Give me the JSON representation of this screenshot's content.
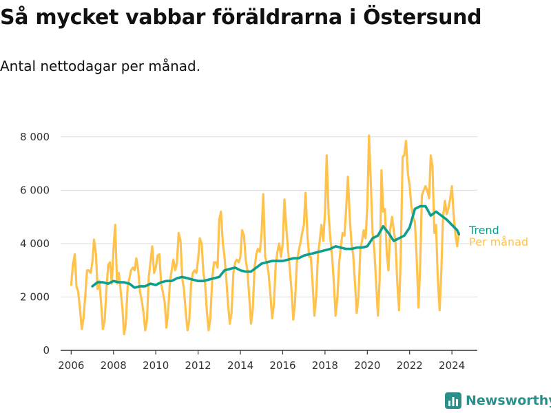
{
  "header": {
    "title": "Så mycket vabbar föräldrarna i Östersund",
    "subtitle": "Antal nettodagar per månad."
  },
  "brand": {
    "name": "Newsworthy",
    "icon": "bar-chart-logo-icon"
  },
  "colors": {
    "monthly": "#FFC34D",
    "trend": "#0E9E8E",
    "grid": "#DDDDDD",
    "axis": "#333333"
  },
  "chart_data": {
    "type": "line",
    "title": "Så mycket vabbar föräldrarna i Östersund",
    "subtitle": "Antal nettodagar per månad.",
    "xlabel": "",
    "ylabel": "",
    "xlim": [
      2005.5,
      2025.2
    ],
    "ylim": [
      0,
      9000
    ],
    "xticks": [
      2006,
      2008,
      2010,
      2012,
      2014,
      2016,
      2018,
      2020,
      2022,
      2024
    ],
    "xtick_labels": [
      "2006",
      "2008",
      "2010",
      "2012",
      "2014",
      "2016",
      "2018",
      "2020",
      "2022",
      "2024"
    ],
    "yticks": [
      0,
      2000,
      4000,
      6000,
      8000
    ],
    "ytick_labels": [
      "0",
      "2 000",
      "4 000",
      "6 000",
      "8 000"
    ],
    "grid": true,
    "legend_position": "right-end",
    "series": [
      {
        "name": "Per månad",
        "x": [
          2006.0,
          2006.08,
          2006.17,
          2006.25,
          2006.33,
          2006.42,
          2006.5,
          2006.58,
          2006.67,
          2006.75,
          2006.83,
          2006.92,
          2007.0,
          2007.08,
          2007.17,
          2007.25,
          2007.33,
          2007.42,
          2007.5,
          2007.58,
          2007.67,
          2007.75,
          2007.83,
          2007.92,
          2008.0,
          2008.08,
          2008.17,
          2008.25,
          2008.33,
          2008.42,
          2008.5,
          2008.58,
          2008.67,
          2008.75,
          2008.83,
          2008.92,
          2009.0,
          2009.08,
          2009.17,
          2009.25,
          2009.33,
          2009.42,
          2009.5,
          2009.58,
          2009.67,
          2009.75,
          2009.83,
          2009.92,
          2010.0,
          2010.08,
          2010.17,
          2010.25,
          2010.33,
          2010.42,
          2010.5,
          2010.58,
          2010.67,
          2010.75,
          2010.83,
          2010.92,
          2011.0,
          2011.08,
          2011.17,
          2011.25,
          2011.33,
          2011.42,
          2011.5,
          2011.58,
          2011.67,
          2011.75,
          2011.83,
          2011.92,
          2012.0,
          2012.08,
          2012.17,
          2012.25,
          2012.33,
          2012.42,
          2012.5,
          2012.58,
          2012.67,
          2012.75,
          2012.83,
          2012.92,
          2013.0,
          2013.08,
          2013.17,
          2013.25,
          2013.33,
          2013.42,
          2013.5,
          2013.58,
          2013.67,
          2013.75,
          2013.83,
          2013.92,
          2014.0,
          2014.08,
          2014.17,
          2014.25,
          2014.33,
          2014.42,
          2014.5,
          2014.58,
          2014.67,
          2014.75,
          2014.83,
          2014.92,
          2015.0,
          2015.08,
          2015.17,
          2015.25,
          2015.33,
          2015.42,
          2015.5,
          2015.58,
          2015.67,
          2015.75,
          2015.83,
          2015.92,
          2016.0,
          2016.08,
          2016.17,
          2016.25,
          2016.33,
          2016.42,
          2016.5,
          2016.58,
          2016.67,
          2016.75,
          2016.83,
          2016.92,
          2017.0,
          2017.08,
          2017.17,
          2017.25,
          2017.33,
          2017.42,
          2017.5,
          2017.58,
          2017.67,
          2017.75,
          2017.83,
          2017.92,
          2018.0,
          2018.08,
          2018.17,
          2018.25,
          2018.33,
          2018.42,
          2018.5,
          2018.58,
          2018.67,
          2018.75,
          2018.83,
          2018.92,
          2019.0,
          2019.08,
          2019.17,
          2019.25,
          2019.33,
          2019.42,
          2019.5,
          2019.58,
          2019.67,
          2019.75,
          2019.83,
          2019.92,
          2020.0,
          2020.08,
          2020.17,
          2020.25,
          2020.33,
          2020.42,
          2020.5,
          2020.58,
          2020.67,
          2020.75,
          2020.83,
          2020.92,
          2021.0,
          2021.08,
          2021.17,
          2021.25,
          2021.33,
          2021.42,
          2021.5,
          2021.58,
          2021.67,
          2021.75,
          2021.83,
          2021.92,
          2022.0,
          2022.08,
          2022.17,
          2022.25,
          2022.33,
          2022.42,
          2022.5,
          2022.58,
          2022.67,
          2022.75,
          2022.83,
          2022.92,
          2023.0,
          2023.08,
          2023.17,
          2023.25,
          2023.33,
          2023.42,
          2023.5,
          2023.58,
          2023.67,
          2023.75,
          2023.83,
          2023.92,
          2024.0,
          2024.08,
          2024.17,
          2024.25,
          2024.33
        ],
        "values": [
          2450,
          3200,
          3600,
          2400,
          2200,
          1500,
          800,
          1200,
          2100,
          3000,
          3000,
          2900,
          3300,
          4150,
          3600,
          2300,
          2600,
          1700,
          800,
          1100,
          2300,
          3200,
          3300,
          2500,
          3800,
          4700,
          2500,
          2900,
          2300,
          1600,
          600,
          1000,
          2400,
          2700,
          3000,
          3100,
          3000,
          3450,
          3000,
          2200,
          1900,
          1400,
          750,
          1100,
          2800,
          3300,
          3900,
          2900,
          3100,
          3550,
          3600,
          2500,
          2200,
          1800,
          850,
          1400,
          2600,
          3000,
          3400,
          3000,
          3300,
          4400,
          4100,
          2700,
          2300,
          1400,
          750,
          1100,
          2500,
          2900,
          3000,
          2900,
          3400,
          4200,
          4000,
          2900,
          2500,
          1400,
          750,
          1200,
          2700,
          3300,
          3300,
          3100,
          4900,
          5200,
          4000,
          3500,
          2700,
          1700,
          1000,
          1400,
          2900,
          3300,
          3400,
          3300,
          3500,
          4500,
          4300,
          3400,
          3000,
          2000,
          1000,
          1500,
          3100,
          3600,
          3800,
          3700,
          4400,
          5850,
          3500,
          3300,
          2900,
          2100,
          1200,
          1700,
          3200,
          3700,
          4000,
          3500,
          4000,
          5650,
          4600,
          3800,
          3100,
          2200,
          1150,
          1800,
          3300,
          3700,
          4000,
          4400,
          4700,
          5900,
          4300,
          3500,
          3500,
          2400,
          1300,
          2000,
          3600,
          4100,
          4700,
          4100,
          5200,
          7300,
          5100,
          4200,
          3600,
          2500,
          1300,
          1900,
          3300,
          3900,
          4400,
          4300,
          5300,
          6500,
          5000,
          4000,
          3600,
          2500,
          1400,
          2000,
          3800,
          4100,
          4500,
          4200,
          5400,
          8050,
          6200,
          4400,
          3800,
          2500,
          1300,
          2600,
          6750,
          5200,
          5300,
          3600,
          3000,
          4500,
          5000,
          4500,
          4100,
          2500,
          1500,
          3500,
          7250,
          7300,
          7850,
          6600,
          6200,
          5400,
          5000,
          4800,
          3500,
          1600,
          3200,
          5800,
          6000,
          6150,
          6000,
          5700,
          7300,
          6900,
          4400,
          4700,
          2700,
          1500,
          3000,
          5000,
          5600,
          5100,
          5300,
          5700,
          6150,
          5100,
          4300,
          3900,
          4400
        ]
      },
      {
        "name": "Trend",
        "x": [
          2007.0,
          2007.25,
          2007.5,
          2007.75,
          2008.0,
          2008.25,
          2008.5,
          2008.75,
          2009.0,
          2009.25,
          2009.5,
          2009.75,
          2010.0,
          2010.25,
          2010.5,
          2010.75,
          2011.0,
          2011.25,
          2011.5,
          2011.75,
          2012.0,
          2012.25,
          2012.5,
          2012.75,
          2013.0,
          2013.25,
          2013.5,
          2013.75,
          2014.0,
          2014.25,
          2014.5,
          2014.75,
          2015.0,
          2015.25,
          2015.5,
          2015.75,
          2016.0,
          2016.25,
          2016.5,
          2016.75,
          2017.0,
          2017.25,
          2017.5,
          2017.75,
          2018.0,
          2018.25,
          2018.5,
          2018.75,
          2019.0,
          2019.25,
          2019.5,
          2019.75,
          2020.0,
          2020.25,
          2020.5,
          2020.75,
          2021.0,
          2021.25,
          2021.5,
          2021.75,
          2022.0,
          2022.25,
          2022.5,
          2022.75,
          2023.0,
          2023.25,
          2023.5,
          2023.75,
          2024.0,
          2024.25,
          2024.33
        ],
        "values": [
          2400,
          2550,
          2550,
          2500,
          2600,
          2550,
          2550,
          2500,
          2350,
          2400,
          2400,
          2500,
          2450,
          2550,
          2600,
          2600,
          2700,
          2750,
          2700,
          2650,
          2600,
          2600,
          2650,
          2700,
          2750,
          3000,
          3050,
          3100,
          3000,
          2950,
          2950,
          3100,
          3250,
          3300,
          3350,
          3350,
          3350,
          3400,
          3450,
          3450,
          3550,
          3600,
          3650,
          3700,
          3750,
          3800,
          3900,
          3850,
          3800,
          3800,
          3850,
          3850,
          3900,
          4200,
          4300,
          4650,
          4400,
          4100,
          4200,
          4300,
          4600,
          5300,
          5400,
          5400,
          5050,
          5200,
          5050,
          4900,
          4700,
          4500,
          4350
        ]
      }
    ]
  }
}
